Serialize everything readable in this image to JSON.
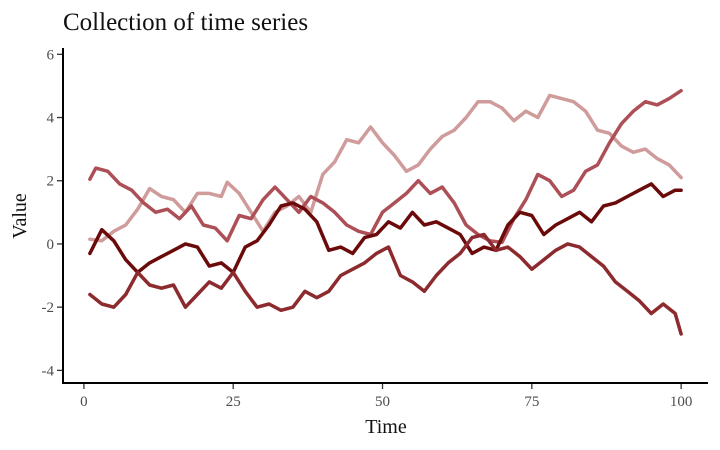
{
  "chart_data": {
    "type": "line",
    "title": "Collection of time series",
    "xlabel": "Time",
    "ylabel": "Value",
    "xlim": [
      -3.5,
      104.5
    ],
    "ylim": [
      -4.4,
      6.2
    ],
    "xticks": [
      0,
      25,
      50,
      75,
      100
    ],
    "yticks": [
      -4,
      -2,
      0,
      2,
      4,
      6
    ],
    "grid": false,
    "legend": "none",
    "colors": [
      "#cf9b9b",
      "#ad4f56",
      "#6b0a0a",
      "#8c2a2e"
    ],
    "series": [
      {
        "color": "#cf9b9b",
        "points": [
          [
            1,
            0.15
          ],
          [
            3,
            0.1
          ],
          [
            5,
            0.4
          ],
          [
            7,
            0.6
          ],
          [
            9,
            1.1
          ],
          [
            11,
            1.75
          ],
          [
            13,
            1.5
          ],
          [
            15,
            1.4
          ],
          [
            17,
            1.0
          ],
          [
            19,
            1.6
          ],
          [
            21,
            1.6
          ],
          [
            23,
            1.5
          ],
          [
            24,
            1.95
          ],
          [
            26,
            1.6
          ],
          [
            28,
            1.0
          ],
          [
            30,
            0.4
          ],
          [
            32,
            1.0
          ],
          [
            34,
            1.2
          ],
          [
            36,
            1.5
          ],
          [
            38,
            1.0
          ],
          [
            40,
            2.2
          ],
          [
            42,
            2.6
          ],
          [
            44,
            3.3
          ],
          [
            46,
            3.2
          ],
          [
            48,
            3.7
          ],
          [
            50,
            3.2
          ],
          [
            52,
            2.8
          ],
          [
            54,
            2.3
          ],
          [
            56,
            2.5
          ],
          [
            58,
            3.0
          ],
          [
            60,
            3.4
          ],
          [
            62,
            3.6
          ],
          [
            64,
            4.0
          ],
          [
            66,
            4.5
          ],
          [
            68,
            4.5
          ],
          [
            70,
            4.3
          ],
          [
            72,
            3.9
          ],
          [
            74,
            4.2
          ],
          [
            76,
            4.0
          ],
          [
            78,
            4.7
          ],
          [
            80,
            4.6
          ],
          [
            82,
            4.5
          ],
          [
            84,
            4.2
          ],
          [
            86,
            3.6
          ],
          [
            88,
            3.5
          ],
          [
            90,
            3.1
          ],
          [
            92,
            2.9
          ],
          [
            94,
            3.0
          ],
          [
            96,
            2.7
          ],
          [
            98,
            2.5
          ],
          [
            100,
            2.1
          ]
        ]
      },
      {
        "color": "#ad4f56",
        "points": [
          [
            1,
            2.05
          ],
          [
            2,
            2.4
          ],
          [
            4,
            2.3
          ],
          [
            6,
            1.9
          ],
          [
            8,
            1.7
          ],
          [
            10,
            1.3
          ],
          [
            12,
            1.0
          ],
          [
            14,
            1.1
          ],
          [
            16,
            0.8
          ],
          [
            18,
            1.2
          ],
          [
            20,
            0.6
          ],
          [
            22,
            0.5
          ],
          [
            24,
            0.1
          ],
          [
            26,
            0.9
          ],
          [
            28,
            0.8
          ],
          [
            30,
            1.4
          ],
          [
            32,
            1.8
          ],
          [
            34,
            1.4
          ],
          [
            36,
            1.0
          ],
          [
            38,
            1.5
          ],
          [
            40,
            1.3
          ],
          [
            42,
            1.0
          ],
          [
            44,
            0.6
          ],
          [
            46,
            0.4
          ],
          [
            48,
            0.3
          ],
          [
            50,
            1.0
          ],
          [
            52,
            1.3
          ],
          [
            54,
            1.6
          ],
          [
            56,
            2.0
          ],
          [
            58,
            1.6
          ],
          [
            60,
            1.8
          ],
          [
            62,
            1.3
          ],
          [
            64,
            0.6
          ],
          [
            66,
            0.3
          ],
          [
            68,
            0.1
          ],
          [
            70,
            0.05
          ],
          [
            72,
            0.8
          ],
          [
            74,
            1.4
          ],
          [
            76,
            2.2
          ],
          [
            78,
            2.0
          ],
          [
            80,
            1.5
          ],
          [
            82,
            1.7
          ],
          [
            84,
            2.3
          ],
          [
            86,
            2.5
          ],
          [
            88,
            3.2
          ],
          [
            90,
            3.8
          ],
          [
            92,
            4.2
          ],
          [
            94,
            4.5
          ],
          [
            96,
            4.4
          ],
          [
            98,
            4.6
          ],
          [
            100,
            4.85
          ]
        ]
      },
      {
        "color": "#6b0a0a",
        "points": [
          [
            1,
            -0.3
          ],
          [
            3,
            0.45
          ],
          [
            5,
            0.1
          ],
          [
            7,
            -0.5
          ],
          [
            9,
            -0.9
          ],
          [
            11,
            -0.6
          ],
          [
            13,
            -0.4
          ],
          [
            15,
            -0.2
          ],
          [
            17,
            0.0
          ],
          [
            19,
            -0.1
          ],
          [
            21,
            -0.7
          ],
          [
            23,
            -0.6
          ],
          [
            25,
            -0.9
          ],
          [
            27,
            -0.1
          ],
          [
            29,
            0.1
          ],
          [
            31,
            0.6
          ],
          [
            33,
            1.2
          ],
          [
            35,
            1.3
          ],
          [
            37,
            1.1
          ],
          [
            39,
            0.7
          ],
          [
            41,
            -0.2
          ],
          [
            43,
            -0.1
          ],
          [
            45,
            -0.3
          ],
          [
            47,
            0.2
          ],
          [
            49,
            0.3
          ],
          [
            51,
            0.7
          ],
          [
            53,
            0.5
          ],
          [
            55,
            1.0
          ],
          [
            57,
            0.6
          ],
          [
            59,
            0.7
          ],
          [
            61,
            0.5
          ],
          [
            63,
            0.3
          ],
          [
            65,
            -0.3
          ],
          [
            67,
            -0.1
          ],
          [
            69,
            -0.2
          ],
          [
            71,
            0.6
          ],
          [
            73,
            1.0
          ],
          [
            75,
            0.9
          ],
          [
            77,
            0.3
          ],
          [
            79,
            0.6
          ],
          [
            81,
            0.8
          ],
          [
            83,
            1.0
          ],
          [
            85,
            0.7
          ],
          [
            87,
            1.2
          ],
          [
            89,
            1.3
          ],
          [
            91,
            1.5
          ],
          [
            93,
            1.7
          ],
          [
            95,
            1.9
          ],
          [
            97,
            1.5
          ],
          [
            99,
            1.7
          ],
          [
            100,
            1.7
          ]
        ]
      },
      {
        "color": "#8c2a2e",
        "points": [
          [
            1,
            -1.6
          ],
          [
            3,
            -1.9
          ],
          [
            5,
            -2.0
          ],
          [
            7,
            -1.6
          ],
          [
            9,
            -0.9
          ],
          [
            11,
            -1.3
          ],
          [
            13,
            -1.4
          ],
          [
            15,
            -1.3
          ],
          [
            17,
            -2.0
          ],
          [
            19,
            -1.6
          ],
          [
            21,
            -1.2
          ],
          [
            23,
            -1.4
          ],
          [
            25,
            -0.9
          ],
          [
            27,
            -1.5
          ],
          [
            29,
            -2.0
          ],
          [
            31,
            -1.9
          ],
          [
            33,
            -2.1
          ],
          [
            35,
            -2.0
          ],
          [
            37,
            -1.5
          ],
          [
            39,
            -1.7
          ],
          [
            41,
            -1.5
          ],
          [
            43,
            -1.0
          ],
          [
            45,
            -0.8
          ],
          [
            47,
            -0.6
          ],
          [
            49,
            -0.3
          ],
          [
            51,
            -0.1
          ],
          [
            53,
            -1.0
          ],
          [
            55,
            -1.2
          ],
          [
            57,
            -1.5
          ],
          [
            59,
            -1.0
          ],
          [
            61,
            -0.6
          ],
          [
            63,
            -0.3
          ],
          [
            65,
            0.2
          ],
          [
            67,
            0.3
          ],
          [
            69,
            -0.2
          ],
          [
            71,
            -0.1
          ],
          [
            73,
            -0.4
          ],
          [
            75,
            -0.8
          ],
          [
            77,
            -0.5
          ],
          [
            79,
            -0.2
          ],
          [
            81,
            0.0
          ],
          [
            83,
            -0.1
          ],
          [
            85,
            -0.4
          ],
          [
            87,
            -0.7
          ],
          [
            89,
            -1.2
          ],
          [
            91,
            -1.5
          ],
          [
            93,
            -1.8
          ],
          [
            95,
            -2.2
          ],
          [
            97,
            -1.9
          ],
          [
            99,
            -2.2
          ],
          [
            100,
            -2.85
          ]
        ]
      }
    ]
  }
}
